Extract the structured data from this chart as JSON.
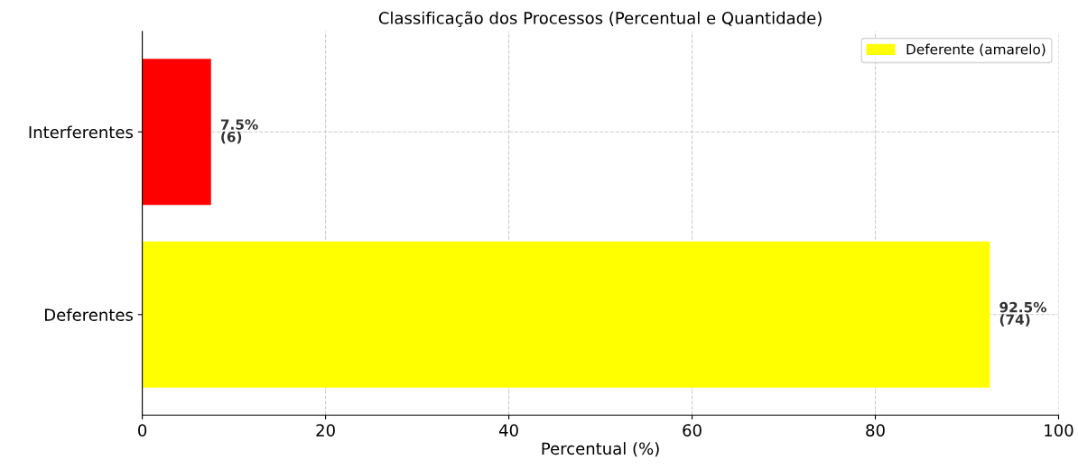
{
  "chart_data": {
    "type": "bar",
    "orientation": "horizontal",
    "title": "Classificação dos Processos (Percentual e Quantidade)",
    "xlabel": "Percentual (%)",
    "categories": [
      "Interferentes",
      "Deferentes"
    ],
    "series": [
      {
        "name": "Deferente (amarelo)",
        "color": "#ffff00",
        "values": [
          null,
          92.5
        ],
        "value_labels": [
          null,
          "92.5%\n(74)"
        ]
      },
      {
        "color": "#ff0000",
        "values": [
          7.5,
          null
        ],
        "value_labels": [
          "7.5%\n(6)",
          null
        ]
      }
    ],
    "xlim": [
      0,
      100
    ],
    "xticks": [
      0,
      20,
      40,
      60,
      80,
      100
    ],
    "grid": true,
    "legend": "top right"
  }
}
